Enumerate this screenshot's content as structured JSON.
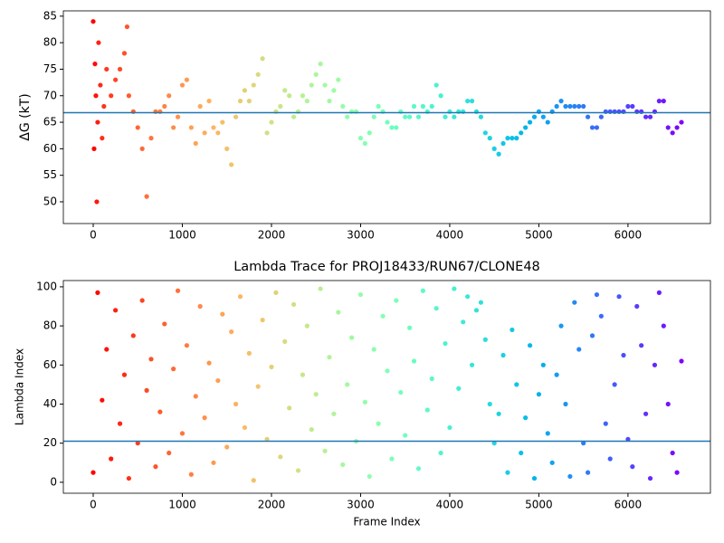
{
  "chart_data": [
    {
      "type": "scatter",
      "ylabel": "ΔG (kT)",
      "colormap": "rainbow_r",
      "hline": 66.8,
      "hline_color": "#1f77b4",
      "xlim": [
        -335,
        6925
      ],
      "ylim": [
        45.9,
        86.0
      ],
      "xticks": [
        0,
        1000,
        2000,
        3000,
        4000,
        5000,
        6000
      ],
      "yticks": [
        50,
        55,
        60,
        65,
        70,
        75,
        80,
        85
      ],
      "x": [
        0,
        10,
        20,
        30,
        40,
        50,
        60,
        80,
        100,
        120,
        150,
        200,
        250,
        300,
        350,
        380,
        400,
        450,
        500,
        550,
        600,
        650,
        700,
        750,
        800,
        850,
        900,
        950,
        1000,
        1050,
        1100,
        1150,
        1200,
        1250,
        1300,
        1350,
        1400,
        1450,
        1500,
        1550,
        1600,
        1650,
        1700,
        1750,
        1800,
        1850,
        1900,
        1950,
        2000,
        2050,
        2100,
        2150,
        2200,
        2250,
        2300,
        2350,
        2400,
        2450,
        2500,
        2550,
        2600,
        2650,
        2700,
        2750,
        2800,
        2850,
        2900,
        2950,
        3000,
        3050,
        3100,
        3150,
        3200,
        3250,
        3300,
        3350,
        3400,
        3450,
        3500,
        3550,
        3600,
        3650,
        3700,
        3750,
        3800,
        3850,
        3900,
        3950,
        4000,
        4050,
        4100,
        4150,
        4200,
        4250,
        4300,
        4350,
        4400,
        4450,
        4500,
        4550,
        4600,
        4650,
        4700,
        4750,
        4800,
        4850,
        4900,
        4950,
        5000,
        5050,
        5100,
        5150,
        5200,
        5250,
        5300,
        5350,
        5400,
        5450,
        5500,
        5550,
        5600,
        5650,
        5700,
        5750,
        5800,
        5850,
        5900,
        5950,
        6000,
        6050,
        6100,
        6150,
        6200,
        6250,
        6300,
        6350,
        6400,
        6450,
        6500,
        6550,
        6600
      ],
      "values": [
        84,
        60,
        76,
        70,
        50,
        65,
        80,
        72,
        62,
        68,
        75,
        70,
        73,
        75,
        78,
        83,
        70,
        67,
        64,
        60,
        51,
        62,
        67,
        67,
        68,
        70,
        64,
        66,
        72,
        73,
        64,
        61,
        68,
        63,
        69,
        64,
        63,
        65,
        60,
        57,
        66,
        69,
        71,
        69,
        72,
        74,
        77,
        63,
        65,
        67,
        68,
        71,
        70,
        66,
        67,
        70,
        69,
        72,
        74,
        76,
        72,
        69,
        71,
        73,
        68,
        66,
        67,
        67,
        62,
        61,
        63,
        66,
        68,
        67,
        65,
        64,
        64,
        67,
        66,
        66,
        68,
        66,
        68,
        67,
        68,
        72,
        70,
        66,
        67,
        66,
        67,
        67,
        69,
        69,
        67,
        66,
        63,
        62,
        60,
        59,
        61,
        62,
        62,
        62,
        63,
        64,
        65,
        66,
        67,
        66,
        65,
        67,
        68,
        69,
        68,
        68,
        68,
        68,
        68,
        66,
        64,
        64,
        66,
        67,
        67,
        67,
        67,
        67,
        68,
        68,
        67,
        67,
        66,
        66,
        67,
        69,
        69,
        64,
        63,
        64,
        65
      ]
    },
    {
      "type": "scatter",
      "title": "Lambda Trace for PROJ18433/RUN67/CLONE48",
      "xlabel": "Frame Index",
      "ylabel": "Lambda Index",
      "colormap": "rainbow_r",
      "hline": 21,
      "hline_color": "#1f77b4",
      "xlim": [
        -335,
        6925
      ],
      "ylim": [
        -5.6,
        103.2
      ],
      "xticks": [
        0,
        1000,
        2000,
        3000,
        4000,
        5000,
        6000
      ],
      "yticks": [
        0,
        20,
        40,
        60,
        80,
        100
      ],
      "x": [
        0,
        50,
        100,
        150,
        200,
        250,
        300,
        350,
        400,
        450,
        500,
        550,
        600,
        650,
        700,
        750,
        800,
        850,
        900,
        950,
        1000,
        1050,
        1100,
        1150,
        1200,
        1250,
        1300,
        1350,
        1400,
        1450,
        1500,
        1550,
        1600,
        1650,
        1700,
        1750,
        1800,
        1850,
        1900,
        1950,
        2000,
        2050,
        2100,
        2150,
        2200,
        2250,
        2300,
        2350,
        2400,
        2450,
        2500,
        2550,
        2600,
        2650,
        2700,
        2750,
        2800,
        2850,
        2900,
        2950,
        3000,
        3050,
        3100,
        3150,
        3200,
        3250,
        3300,
        3350,
        3400,
        3450,
        3500,
        3550,
        3600,
        3650,
        3700,
        3750,
        3800,
        3850,
        3900,
        3950,
        4000,
        4050,
        4100,
        4150,
        4200,
        4250,
        4300,
        4350,
        4400,
        4450,
        4500,
        4550,
        4600,
        4650,
        4700,
        4750,
        4800,
        4850,
        4900,
        4950,
        5000,
        5050,
        5100,
        5150,
        5200,
        5250,
        5300,
        5350,
        5400,
        5450,
        5500,
        5550,
        5600,
        5650,
        5700,
        5750,
        5800,
        5850,
        5900,
        5950,
        6000,
        6050,
        6100,
        6150,
        6200,
        6250,
        6300,
        6350,
        6400,
        6450,
        6500,
        6550,
        6600
      ],
      "values": [
        5,
        97,
        42,
        68,
        12,
        88,
        30,
        55,
        2,
        75,
        20,
        93,
        47,
        63,
        8,
        36,
        81,
        15,
        58,
        98,
        25,
        70,
        4,
        44,
        90,
        33,
        61,
        10,
        52,
        86,
        18,
        77,
        40,
        95,
        28,
        66,
        1,
        49,
        83,
        22,
        59,
        97,
        13,
        72,
        38,
        91,
        6,
        55,
        80,
        27,
        45,
        99,
        16,
        64,
        35,
        87,
        9,
        50,
        74,
        21,
        96,
        41,
        3,
        68,
        30,
        85,
        57,
        12,
        93,
        46,
        24,
        79,
        62,
        7,
        98,
        37,
        53,
        89,
        15,
        71,
        28,
        99,
        48,
        82,
        95,
        60,
        88,
        92,
        73,
        40,
        20,
        35,
        65,
        5,
        78,
        50,
        15,
        33,
        70,
        2,
        45,
        60,
        25,
        10,
        55,
        80,
        40,
        3,
        92,
        68,
        20,
        5,
        75,
        96,
        85,
        30,
        12,
        50,
        95,
        65,
        22,
        8,
        90,
        70,
        35,
        2,
        60,
        97,
        80,
        40,
        15,
        5,
        62
      ]
    }
  ]
}
